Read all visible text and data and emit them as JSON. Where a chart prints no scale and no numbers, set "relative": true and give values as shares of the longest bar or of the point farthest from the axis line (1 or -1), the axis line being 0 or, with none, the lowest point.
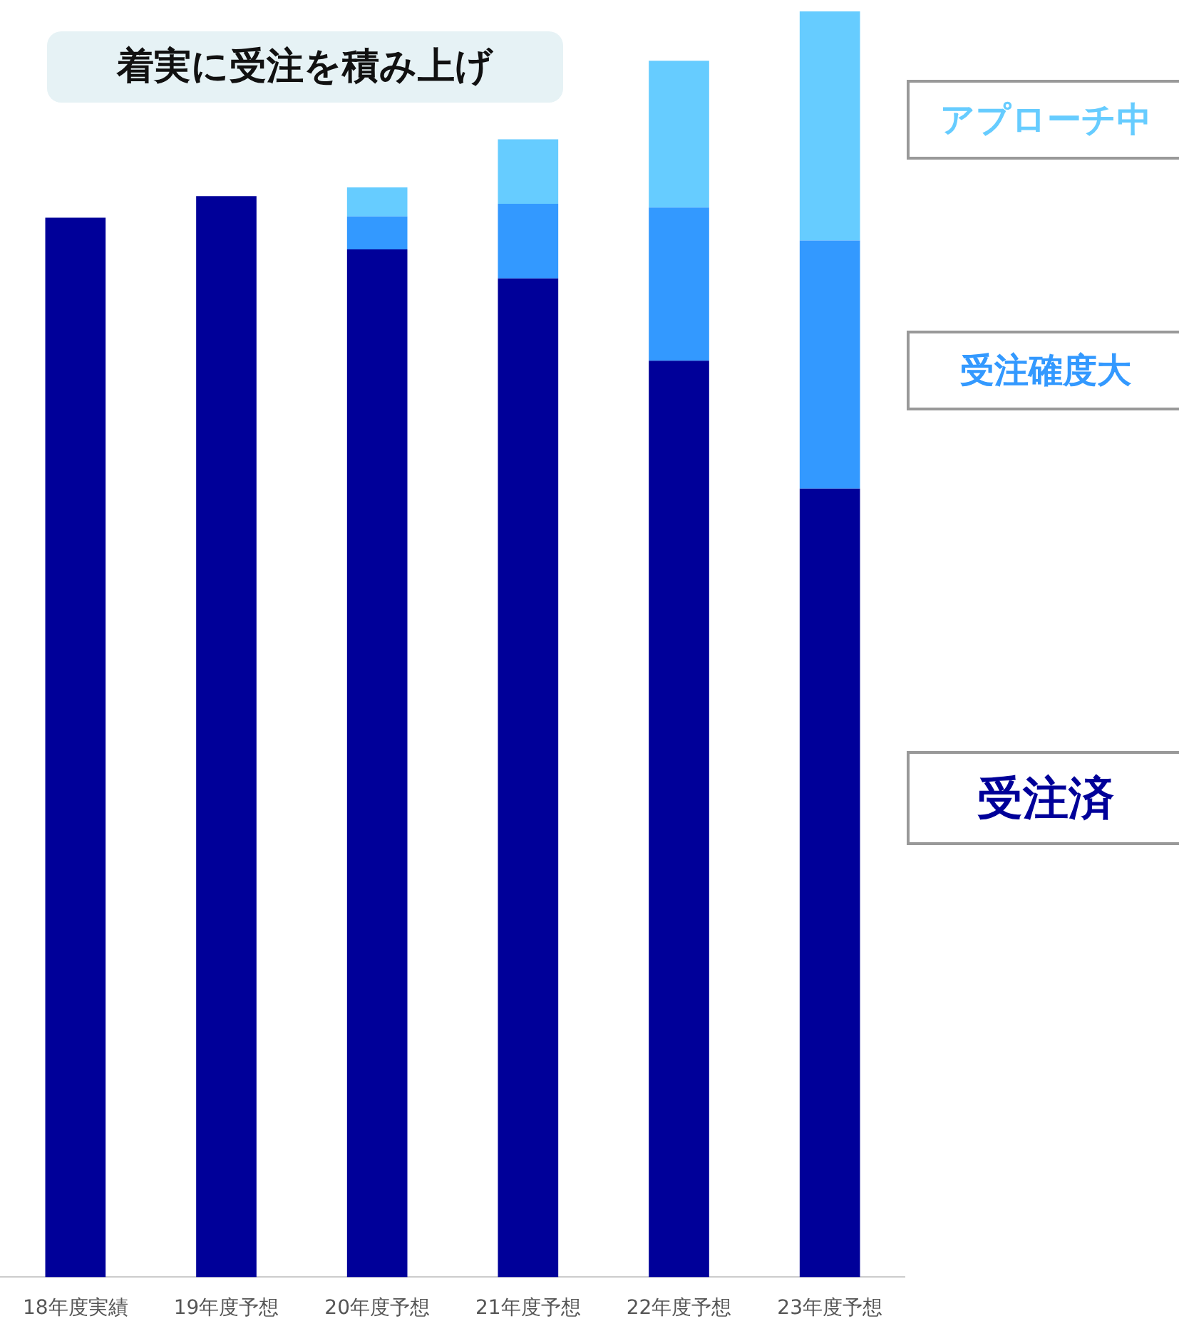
{
  "chart_data": {
    "type": "bar",
    "title": "着実に受注を積み上げ",
    "stacked": true,
    "relative": true,
    "legend": "right",
    "grid": false,
    "categories": [
      "18年度実績",
      "19年度予想",
      "20年度予想",
      "21年度予想",
      "22年度予想",
      "23年度予想"
    ],
    "series": [
      {
        "name": "受注済",
        "color": "#000099",
        "values": [
          0.837,
          0.854,
          0.812,
          0.789,
          0.724,
          0.623
        ]
      },
      {
        "name": "受注確度大",
        "color": "#3399ff",
        "values": [
          null,
          null,
          0.026,
          0.059,
          0.121,
          0.196
        ]
      },
      {
        "name": "アプローチ中",
        "color": "#66ccff",
        "values": [
          null,
          null,
          0.023,
          0.051,
          0.116,
          0.181
        ]
      }
    ]
  }
}
